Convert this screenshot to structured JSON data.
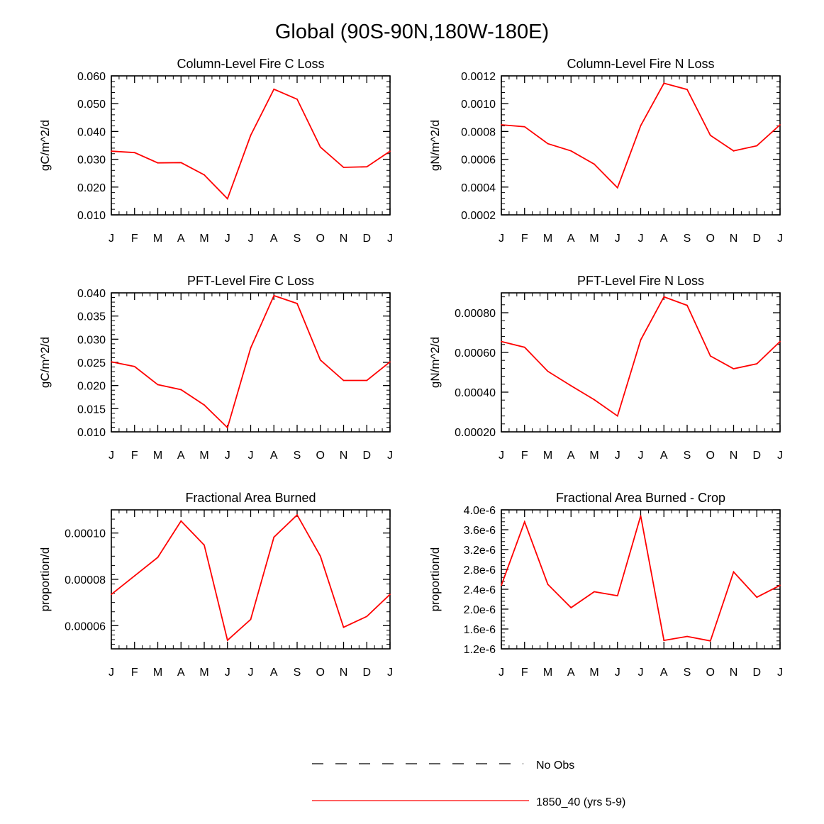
{
  "page_title": "Global (90S-90N,180W-180E)",
  "colors": {
    "series": "#ff0000",
    "axis": "#000000",
    "obs": "#000000"
  },
  "legend": [
    {
      "label": "No Obs",
      "style": "dashed",
      "color": "#000000"
    },
    {
      "label": "1850_40 (yrs 5-9)",
      "style": "solid",
      "color": "#ff0000"
    }
  ],
  "chart_data": [
    {
      "type": "line",
      "title": "Column-Level Fire C Loss",
      "ylabel": "gC/m^2/d",
      "categories": [
        "J",
        "F",
        "M",
        "A",
        "M",
        "J",
        "J",
        "A",
        "S",
        "O",
        "N",
        "D",
        "J"
      ],
      "ylim": [
        0.01,
        0.06
      ],
      "yticks": [
        0.01,
        0.02,
        0.03,
        0.04,
        0.05,
        0.06
      ],
      "ytick_labels": [
        "0.010",
        "0.020",
        "0.030",
        "0.040",
        "0.050",
        "0.060"
      ],
      "series": [
        {
          "name": "1850_40 (yrs 5-9)",
          "values": [
            0.0329,
            0.0324,
            0.0287,
            0.0288,
            0.0244,
            0.0158,
            0.0386,
            0.0552,
            0.0516,
            0.0344,
            0.0271,
            0.0273,
            0.0329
          ]
        }
      ]
    },
    {
      "type": "line",
      "title": "Column-Level Fire N Loss",
      "ylabel": "gN/m^2/d",
      "categories": [
        "J",
        "F",
        "M",
        "A",
        "M",
        "J",
        "J",
        "A",
        "S",
        "O",
        "N",
        "D",
        "J"
      ],
      "ylim": [
        0.0002,
        0.0012
      ],
      "yticks": [
        0.0002,
        0.0004,
        0.0006,
        0.0008,
        0.001,
        0.0012
      ],
      "ytick_labels": [
        "0.0002",
        "0.0004",
        "0.0006",
        "0.0008",
        "0.0010",
        "0.0012"
      ],
      "series": [
        {
          "name": "1850_40 (yrs 5-9)",
          "values": [
            0.000848,
            0.000834,
            0.000712,
            0.00066,
            0.000565,
            0.000395,
            0.000842,
            0.001147,
            0.001102,
            0.000772,
            0.00066,
            0.000697,
            0.000848
          ]
        }
      ]
    },
    {
      "type": "line",
      "title": "PFT-Level Fire C Loss",
      "ylabel": "gC/m^2/d",
      "categories": [
        "J",
        "F",
        "M",
        "A",
        "M",
        "J",
        "J",
        "A",
        "S",
        "O",
        "N",
        "D",
        "J"
      ],
      "ylim": [
        0.01,
        0.04
      ],
      "yticks": [
        0.01,
        0.015,
        0.02,
        0.025,
        0.03,
        0.035,
        0.04
      ],
      "ytick_labels": [
        "0.010",
        "0.015",
        "0.020",
        "0.025",
        "0.030",
        "0.035",
        "0.040"
      ],
      "series": [
        {
          "name": "1850_40 (yrs 5-9)",
          "values": [
            0.0251,
            0.0241,
            0.0202,
            0.0191,
            0.0158,
            0.0109,
            0.0281,
            0.0394,
            0.0377,
            0.0255,
            0.0211,
            0.0211,
            0.0251
          ]
        }
      ]
    },
    {
      "type": "line",
      "title": "PFT-Level Fire N Loss",
      "ylabel": "gN/m^2/d",
      "categories": [
        "J",
        "F",
        "M",
        "A",
        "M",
        "J",
        "J",
        "A",
        "S",
        "O",
        "N",
        "D",
        "J"
      ],
      "ylim": [
        0.0002,
        0.0009
      ],
      "yticks": [
        0.0002,
        0.0004,
        0.0006,
        0.0008
      ],
      "ytick_labels": [
        "0.00020",
        "0.00040",
        "0.00060",
        "0.00080"
      ],
      "series": [
        {
          "name": "1850_40 (yrs 5-9)",
          "values": [
            0.000655,
            0.000626,
            0.000505,
            0.000432,
            0.000362,
            0.00028,
            0.000663,
            0.00088,
            0.000837,
            0.000582,
            0.000518,
            0.000543,
            0.000655
          ]
        }
      ]
    },
    {
      "type": "line",
      "title": "Fractional Area Burned",
      "ylabel": "proportion/d",
      "categories": [
        "J",
        "F",
        "M",
        "A",
        "M",
        "J",
        "J",
        "A",
        "S",
        "O",
        "N",
        "D",
        "J"
      ],
      "ylim": [
        5e-05,
        0.00011
      ],
      "yticks": [
        6e-05,
        8e-05,
        0.0001
      ],
      "ytick_labels": [
        "0.00006",
        "0.00008",
        "0.00010"
      ],
      "series": [
        {
          "name": "1850_40 (yrs 5-9)",
          "values": [
            7.35e-05,
            8.15e-05,
            8.95e-05,
            0.0001052,
            9.48e-05,
            5.37e-05,
            6.27e-05,
            9.82e-05,
            0.0001078,
            9e-05,
            5.93e-05,
            6.4e-05,
            7.35e-05
          ]
        }
      ]
    },
    {
      "type": "line",
      "title": "Fractional Area Burned - Crop",
      "ylabel": "proportion/d",
      "categories": [
        "J",
        "F",
        "M",
        "A",
        "M",
        "J",
        "J",
        "A",
        "S",
        "O",
        "N",
        "D",
        "J"
      ],
      "ylim": [
        1.2e-06,
        4e-06
      ],
      "yticks": [
        1.2e-06,
        1.6e-06,
        2e-06,
        2.4e-06,
        2.8e-06,
        3.2e-06,
        3.6e-06,
        4e-06
      ],
      "ytick_labels": [
        "1.2e-6",
        "1.6e-6",
        "2.0e-6",
        "2.4e-6",
        "2.8e-6",
        "3.2e-6",
        "3.6e-6",
        "4.0e-6"
      ],
      "series": [
        {
          "name": "1850_40 (yrs 5-9)",
          "values": [
            2.48e-06,
            3.76e-06,
            2.5e-06,
            2.03e-06,
            2.35e-06,
            2.27e-06,
            3.88e-06,
            1.37e-06,
            1.45e-06,
            1.36e-06,
            2.75e-06,
            2.24e-06,
            2.48e-06
          ]
        }
      ]
    }
  ]
}
